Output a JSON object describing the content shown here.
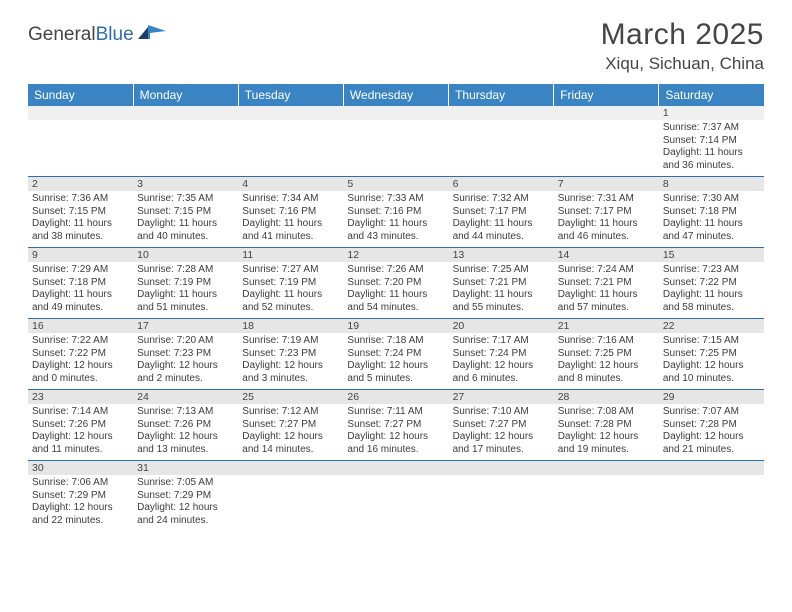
{
  "header": {
    "logo_general": "General",
    "logo_blue": "Blue",
    "month_title": "March 2025",
    "location": "Xiqu, Sichuan, China"
  },
  "colors": {
    "header_bg": "#3a84c4",
    "rule": "#2f6fa8",
    "daynum_bg": "#e6e6e6",
    "page_bg": "#ffffff",
    "text": "#454545"
  },
  "weekdays": [
    "Sunday",
    "Monday",
    "Tuesday",
    "Wednesday",
    "Thursday",
    "Friday",
    "Saturday"
  ],
  "weeks": [
    {
      "nums": [
        "",
        "",
        "",
        "",
        "",
        "",
        "1"
      ],
      "cells": [
        null,
        null,
        null,
        null,
        null,
        null,
        {
          "sunrise": "Sunrise: 7:37 AM",
          "sunset": "Sunset: 7:14 PM",
          "day1": "Daylight: 11 hours",
          "day2": "and 36 minutes."
        }
      ]
    },
    {
      "nums": [
        "2",
        "3",
        "4",
        "5",
        "6",
        "7",
        "8"
      ],
      "cells": [
        {
          "sunrise": "Sunrise: 7:36 AM",
          "sunset": "Sunset: 7:15 PM",
          "day1": "Daylight: 11 hours",
          "day2": "and 38 minutes."
        },
        {
          "sunrise": "Sunrise: 7:35 AM",
          "sunset": "Sunset: 7:15 PM",
          "day1": "Daylight: 11 hours",
          "day2": "and 40 minutes."
        },
        {
          "sunrise": "Sunrise: 7:34 AM",
          "sunset": "Sunset: 7:16 PM",
          "day1": "Daylight: 11 hours",
          "day2": "and 41 minutes."
        },
        {
          "sunrise": "Sunrise: 7:33 AM",
          "sunset": "Sunset: 7:16 PM",
          "day1": "Daylight: 11 hours",
          "day2": "and 43 minutes."
        },
        {
          "sunrise": "Sunrise: 7:32 AM",
          "sunset": "Sunset: 7:17 PM",
          "day1": "Daylight: 11 hours",
          "day2": "and 44 minutes."
        },
        {
          "sunrise": "Sunrise: 7:31 AM",
          "sunset": "Sunset: 7:17 PM",
          "day1": "Daylight: 11 hours",
          "day2": "and 46 minutes."
        },
        {
          "sunrise": "Sunrise: 7:30 AM",
          "sunset": "Sunset: 7:18 PM",
          "day1": "Daylight: 11 hours",
          "day2": "and 47 minutes."
        }
      ]
    },
    {
      "nums": [
        "9",
        "10",
        "11",
        "12",
        "13",
        "14",
        "15"
      ],
      "cells": [
        {
          "sunrise": "Sunrise: 7:29 AM",
          "sunset": "Sunset: 7:18 PM",
          "day1": "Daylight: 11 hours",
          "day2": "and 49 minutes."
        },
        {
          "sunrise": "Sunrise: 7:28 AM",
          "sunset": "Sunset: 7:19 PM",
          "day1": "Daylight: 11 hours",
          "day2": "and 51 minutes."
        },
        {
          "sunrise": "Sunrise: 7:27 AM",
          "sunset": "Sunset: 7:19 PM",
          "day1": "Daylight: 11 hours",
          "day2": "and 52 minutes."
        },
        {
          "sunrise": "Sunrise: 7:26 AM",
          "sunset": "Sunset: 7:20 PM",
          "day1": "Daylight: 11 hours",
          "day2": "and 54 minutes."
        },
        {
          "sunrise": "Sunrise: 7:25 AM",
          "sunset": "Sunset: 7:21 PM",
          "day1": "Daylight: 11 hours",
          "day2": "and 55 minutes."
        },
        {
          "sunrise": "Sunrise: 7:24 AM",
          "sunset": "Sunset: 7:21 PM",
          "day1": "Daylight: 11 hours",
          "day2": "and 57 minutes."
        },
        {
          "sunrise": "Sunrise: 7:23 AM",
          "sunset": "Sunset: 7:22 PM",
          "day1": "Daylight: 11 hours",
          "day2": "and 58 minutes."
        }
      ]
    },
    {
      "nums": [
        "16",
        "17",
        "18",
        "19",
        "20",
        "21",
        "22"
      ],
      "cells": [
        {
          "sunrise": "Sunrise: 7:22 AM",
          "sunset": "Sunset: 7:22 PM",
          "day1": "Daylight: 12 hours",
          "day2": "and 0 minutes."
        },
        {
          "sunrise": "Sunrise: 7:20 AM",
          "sunset": "Sunset: 7:23 PM",
          "day1": "Daylight: 12 hours",
          "day2": "and 2 minutes."
        },
        {
          "sunrise": "Sunrise: 7:19 AM",
          "sunset": "Sunset: 7:23 PM",
          "day1": "Daylight: 12 hours",
          "day2": "and 3 minutes."
        },
        {
          "sunrise": "Sunrise: 7:18 AM",
          "sunset": "Sunset: 7:24 PM",
          "day1": "Daylight: 12 hours",
          "day2": "and 5 minutes."
        },
        {
          "sunrise": "Sunrise: 7:17 AM",
          "sunset": "Sunset: 7:24 PM",
          "day1": "Daylight: 12 hours",
          "day2": "and 6 minutes."
        },
        {
          "sunrise": "Sunrise: 7:16 AM",
          "sunset": "Sunset: 7:25 PM",
          "day1": "Daylight: 12 hours",
          "day2": "and 8 minutes."
        },
        {
          "sunrise": "Sunrise: 7:15 AM",
          "sunset": "Sunset: 7:25 PM",
          "day1": "Daylight: 12 hours",
          "day2": "and 10 minutes."
        }
      ]
    },
    {
      "nums": [
        "23",
        "24",
        "25",
        "26",
        "27",
        "28",
        "29"
      ],
      "cells": [
        {
          "sunrise": "Sunrise: 7:14 AM",
          "sunset": "Sunset: 7:26 PM",
          "day1": "Daylight: 12 hours",
          "day2": "and 11 minutes."
        },
        {
          "sunrise": "Sunrise: 7:13 AM",
          "sunset": "Sunset: 7:26 PM",
          "day1": "Daylight: 12 hours",
          "day2": "and 13 minutes."
        },
        {
          "sunrise": "Sunrise: 7:12 AM",
          "sunset": "Sunset: 7:27 PM",
          "day1": "Daylight: 12 hours",
          "day2": "and 14 minutes."
        },
        {
          "sunrise": "Sunrise: 7:11 AM",
          "sunset": "Sunset: 7:27 PM",
          "day1": "Daylight: 12 hours",
          "day2": "and 16 minutes."
        },
        {
          "sunrise": "Sunrise: 7:10 AM",
          "sunset": "Sunset: 7:27 PM",
          "day1": "Daylight: 12 hours",
          "day2": "and 17 minutes."
        },
        {
          "sunrise": "Sunrise: 7:08 AM",
          "sunset": "Sunset: 7:28 PM",
          "day1": "Daylight: 12 hours",
          "day2": "and 19 minutes."
        },
        {
          "sunrise": "Sunrise: 7:07 AM",
          "sunset": "Sunset: 7:28 PM",
          "day1": "Daylight: 12 hours",
          "day2": "and 21 minutes."
        }
      ]
    },
    {
      "nums": [
        "30",
        "31",
        "",
        "",
        "",
        "",
        ""
      ],
      "cells": [
        {
          "sunrise": "Sunrise: 7:06 AM",
          "sunset": "Sunset: 7:29 PM",
          "day1": "Daylight: 12 hours",
          "day2": "and 22 minutes."
        },
        {
          "sunrise": "Sunrise: 7:05 AM",
          "sunset": "Sunset: 7:29 PM",
          "day1": "Daylight: 12 hours",
          "day2": "and 24 minutes."
        },
        null,
        null,
        null,
        null,
        null
      ]
    }
  ]
}
